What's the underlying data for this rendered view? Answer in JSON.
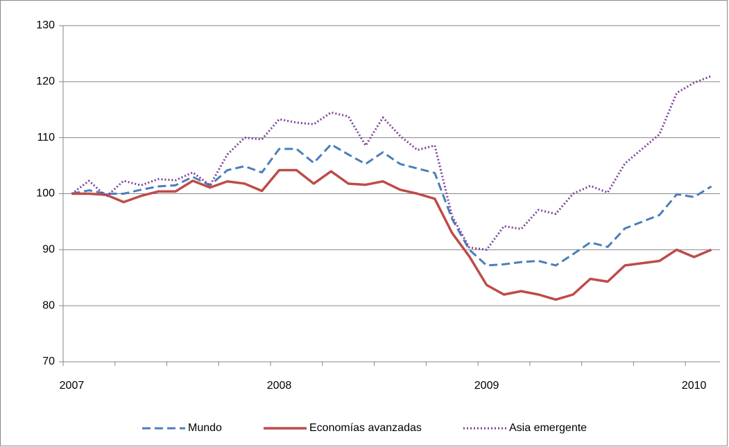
{
  "chart_data": {
    "type": "line",
    "categories": [
      "2007",
      null,
      null,
      null,
      null,
      null,
      null,
      null,
      null,
      null,
      null,
      null,
      "2008",
      null,
      null,
      null,
      null,
      null,
      null,
      null,
      null,
      null,
      null,
      null,
      "2009",
      null,
      null,
      null,
      null,
      null,
      null,
      null,
      null,
      null,
      null,
      null,
      "2010",
      null
    ],
    "series": [
      {
        "name": "Mundo",
        "color": "#4a7ebb",
        "dash": "dashed",
        "values": [
          100,
          100.6,
          100,
          100,
          100.7,
          101.3,
          101.5,
          103,
          101.5,
          104.2,
          104.9,
          103.8,
          108,
          108,
          105.5,
          108.8,
          107,
          105.3,
          107.4,
          105.3,
          104.5,
          103.7,
          95.5,
          90,
          87.2,
          87.4,
          87.8,
          88,
          87.2,
          89.2,
          91.3,
          90.5,
          93.8,
          95,
          96.2,
          99.9,
          99.4,
          101.3
        ]
      },
      {
        "name": "Economías avanzadas",
        "color": "#be4b48",
        "dash": "solid",
        "values": [
          100,
          100,
          99.8,
          98.5,
          99.6,
          100.4,
          100.4,
          102.3,
          101.1,
          102.2,
          101.8,
          100.5,
          104.2,
          104.2,
          101.8,
          104,
          101.8,
          101.6,
          102.2,
          100.7,
          100,
          99.1,
          93,
          88.8,
          83.7,
          82,
          82.6,
          82,
          81.1,
          82,
          84.8,
          84.3,
          87.2,
          87.6,
          88,
          90,
          88.7,
          90
        ]
      },
      {
        "name": "Asia emergente",
        "color": "#7f3f98",
        "dash": "dotted",
        "values": [
          100,
          102.3,
          99.5,
          102.3,
          101.5,
          102.6,
          102.4,
          103.8,
          101.5,
          107,
          110,
          109.7,
          113.3,
          112.7,
          112.4,
          114.5,
          113.8,
          108.6,
          113.6,
          110.3,
          107.8,
          108.6,
          96,
          90.4,
          90,
          94.2,
          93.7,
          97.1,
          96.4,
          100,
          101.4,
          100.2,
          105.4,
          108,
          110.6,
          118,
          119.8,
          121
        ]
      }
    ],
    "ylim": [
      70,
      130
    ],
    "yticks": [
      70,
      80,
      90,
      100,
      110,
      120,
      130
    ],
    "grid": true,
    "legend": "bottom"
  }
}
